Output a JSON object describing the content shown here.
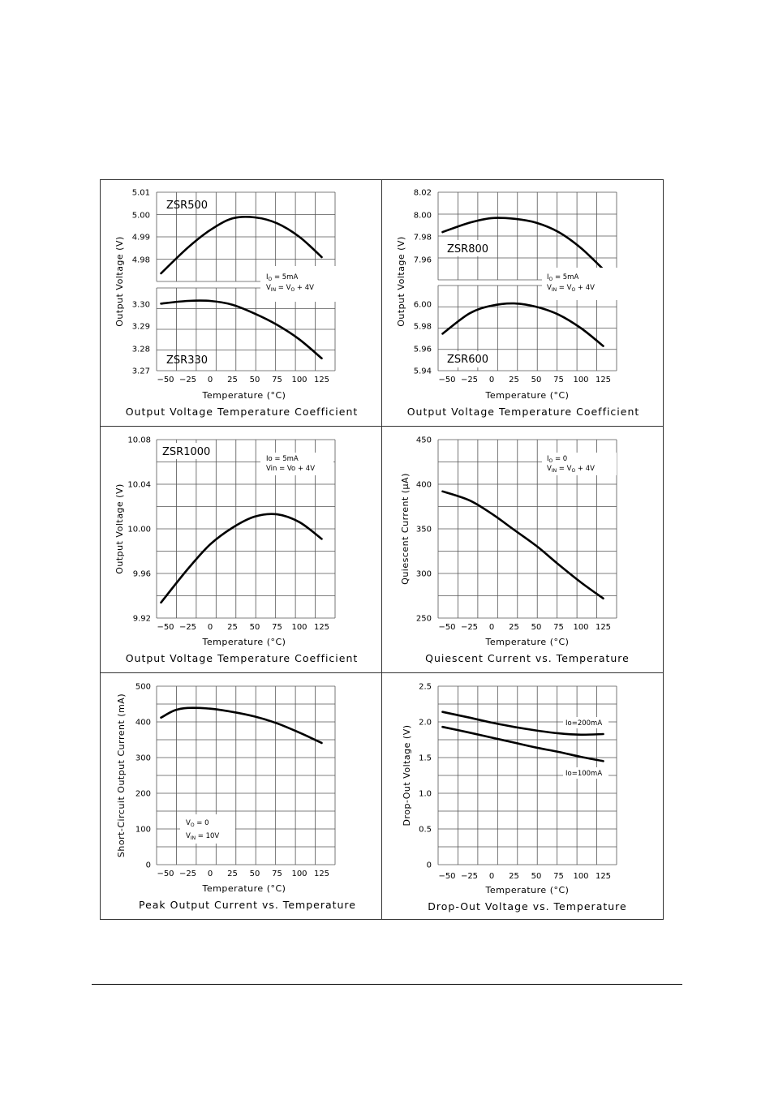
{
  "charts": [
    {
      "id": "otc-zsr500-330",
      "caption": "Output Voltage Temperature Coefficient",
      "xlabel": "Temperature (°C)",
      "ylabel": "Output Voltage (V)",
      "xticks": [
        "-50",
        "-25",
        "0",
        "25",
        "50",
        "75",
        "100",
        "125"
      ],
      "notes": [
        "IO = 5mA",
        "VIN = VO + 4V"
      ],
      "upper": {
        "device_label": "ZSR500",
        "yticks": [
          "5.01",
          "5.00",
          "4.99",
          "4.98"
        ],
        "ylim": [
          4.977,
          5.01
        ]
      },
      "lower": {
        "device_label": "ZSR330",
        "yticks": [
          "3.30",
          "3.29",
          "3.28",
          "3.27"
        ],
        "ylim": [
          3.27,
          3.307
        ]
      }
    },
    {
      "id": "otc-zsr800-600",
      "caption": "Output Voltage Temperature Coefficient",
      "xlabel": "Temperature (°C)",
      "ylabel": "Output Voltage (V)",
      "xticks": [
        "-50",
        "-25",
        "0",
        "25",
        "50",
        "75",
        "100",
        "125"
      ],
      "notes": [
        "IO = 5mA",
        "VIN = VO + 4V"
      ],
      "upper": {
        "device_label": "ZSR800",
        "yticks": [
          "8.02",
          "8.00",
          "7.98",
          "7.96"
        ],
        "ylim": [
          7.954,
          8.02
        ]
      },
      "lower": {
        "device_label": "ZSR600",
        "yticks": [
          "6.00",
          "5.98",
          "5.96",
          "5.94"
        ],
        "ylim": [
          5.94,
          6.016
        ]
      }
    },
    {
      "id": "otc-zsr1000",
      "caption": "Output Voltage Temperature Coefficient",
      "xlabel": "Temperature (°C)",
      "ylabel": "Output Voltage (V)",
      "device_label": "ZSR1000",
      "xticks": [
        "-50",
        "-25",
        "0",
        "25",
        "50",
        "75",
        "100",
        "125"
      ],
      "yticks": [
        "10.08",
        "10.04",
        "10.00",
        "9.96",
        "9.92"
      ],
      "notes": [
        "Io = 5mA",
        "Vin = Vo + 4V"
      ]
    },
    {
      "id": "quiescent",
      "caption": "Quiescent Current vs. Temperature",
      "xlabel": "Temperature (°C)",
      "ylabel": "Quiescent Current (μA)",
      "xticks": [
        "-50",
        "-25",
        "0",
        "25",
        "50",
        "75",
        "100",
        "125"
      ],
      "yticks": [
        "450",
        "400",
        "350",
        "300",
        "250"
      ],
      "notes": [
        "IO = 0",
        "VIN = VO + 4V"
      ]
    },
    {
      "id": "peak-current",
      "caption": "Peak Output Current vs. Temperature",
      "xlabel": "Temperature (°C)",
      "ylabel": "Short-Circuit Output Current (mA)",
      "xticks": [
        "-50",
        "-25",
        "0",
        "25",
        "50",
        "75",
        "100",
        "125"
      ],
      "yticks": [
        "500",
        "400",
        "300",
        "200",
        "100",
        "0"
      ],
      "notes": [
        "VO = 0",
        "VIN = 10V"
      ]
    },
    {
      "id": "dropout",
      "caption": "Drop-Out Voltage vs. Temperature",
      "xlabel": "Temperature (°C)",
      "ylabel": "Drop-Out Voltage (V)",
      "xticks": [
        "-50",
        "-25",
        "0",
        "25",
        "50",
        "75",
        "100",
        "125"
      ],
      "yticks": [
        "2.5",
        "2.0",
        "1.5",
        "1.0",
        "0.5",
        "0"
      ],
      "series_labels": [
        "Io=200mA",
        "Io=100mA"
      ]
    }
  ],
  "chart_data": [
    {
      "type": "line",
      "id": "zsr500",
      "title": "ZSR500",
      "xlabel": "Temperature (°C)",
      "ylabel": "Output Voltage (V)",
      "xlim": [
        -60,
        140
      ],
      "ylim": [
        4.977,
        5.01
      ],
      "x": [
        -55,
        -25,
        0,
        25,
        50,
        75,
        100,
        125
      ],
      "series": [
        {
          "name": "ZSR500",
          "values": [
            4.98,
            4.9895,
            4.996,
            5.0003,
            5.0007,
            4.9985,
            4.9935,
            4.986
          ]
        }
      ]
    },
    {
      "type": "line",
      "id": "zsr330",
      "title": "ZSR330",
      "xlabel": "Temperature (°C)",
      "ylabel": "Output Voltage (V)",
      "xlim": [
        -60,
        140
      ],
      "ylim": [
        3.27,
        3.307
      ],
      "x": [
        -55,
        -25,
        0,
        25,
        50,
        75,
        100,
        125
      ],
      "series": [
        {
          "name": "ZSR330",
          "values": [
            3.3,
            3.3012,
            3.3012,
            3.2995,
            3.2955,
            3.2905,
            3.284,
            3.2755
          ]
        }
      ]
    },
    {
      "type": "line",
      "id": "zsr800",
      "title": "ZSR800",
      "xlabel": "Temperature (°C)",
      "ylabel": "Output Voltage (V)",
      "xlim": [
        -60,
        140
      ],
      "ylim": [
        7.954,
        8.02
      ],
      "x": [
        -55,
        -25,
        0,
        25,
        50,
        75,
        100,
        125
      ],
      "series": [
        {
          "name": "ZSR800",
          "values": [
            7.99,
            7.997,
            8.0005,
            8.0,
            7.997,
            7.99,
            7.978,
            7.962
          ]
        }
      ]
    },
    {
      "type": "line",
      "id": "zsr600",
      "title": "ZSR600",
      "xlabel": "Temperature (°C)",
      "ylabel": "Output Voltage (V)",
      "xlim": [
        -60,
        140
      ],
      "ylim": [
        5.94,
        6.016
      ],
      "x": [
        -55,
        -25,
        0,
        25,
        50,
        75,
        100,
        125
      ],
      "series": [
        {
          "name": "ZSR600",
          "values": [
            5.973,
            5.991,
            5.998,
            6.0,
            5.997,
            5.99,
            5.978,
            5.962
          ]
        }
      ]
    },
    {
      "type": "line",
      "id": "zsr1000",
      "title": "ZSR1000",
      "xlabel": "Temperature (°C)",
      "ylabel": "Output Voltage (V)",
      "xlim": [
        -60,
        140
      ],
      "ylim": [
        9.92,
        10.08
      ],
      "x": [
        -55,
        -25,
        0,
        25,
        50,
        75,
        100,
        125
      ],
      "series": [
        {
          "name": "ZSR1000",
          "values": [
            9.934,
            9.964,
            9.986,
            10.001,
            10.011,
            10.013,
            10.006,
            9.991
          ]
        }
      ]
    },
    {
      "type": "line",
      "id": "quiescent",
      "title": "Quiescent Current vs. Temperature",
      "xlabel": "Temperature (°C)",
      "ylabel": "Quiescent Current (μA)",
      "xlim": [
        -60,
        140
      ],
      "ylim": [
        250,
        450
      ],
      "x": [
        -55,
        -25,
        0,
        25,
        50,
        75,
        100,
        125
      ],
      "series": [
        {
          "name": "Quiescent current",
          "values": [
            392,
            382,
            367,
            349,
            331,
            310,
            290,
            272
          ]
        }
      ]
    },
    {
      "type": "line",
      "id": "peak-current",
      "title": "Peak Output Current vs. Temperature",
      "xlabel": "Temperature (°C)",
      "ylabel": "Short-Circuit Output Current (mA)",
      "xlim": [
        -60,
        140
      ],
      "ylim": [
        0,
        500
      ],
      "x": [
        -55,
        -40,
        -25,
        0,
        25,
        50,
        75,
        100,
        125
      ],
      "series": [
        {
          "name": "Short-circuit current",
          "values": [
            412,
            432,
            439,
            437,
            428,
            415,
            396,
            370,
            341
          ]
        }
      ]
    },
    {
      "type": "line",
      "id": "dropout",
      "title": "Drop-Out Voltage vs. Temperature",
      "xlabel": "Temperature (°C)",
      "ylabel": "Drop-Out Voltage (V)",
      "xlim": [
        -60,
        140
      ],
      "ylim": [
        0,
        2.5
      ],
      "x": [
        -55,
        -25,
        0,
        25,
        50,
        75,
        100,
        125
      ],
      "series": [
        {
          "name": "Io=200mA",
          "values": [
            2.14,
            2.06,
            1.99,
            1.93,
            1.88,
            1.84,
            1.82,
            1.83
          ]
        },
        {
          "name": "Io=100mA",
          "values": [
            1.93,
            1.85,
            1.78,
            1.71,
            1.64,
            1.58,
            1.51,
            1.45
          ]
        }
      ]
    }
  ]
}
